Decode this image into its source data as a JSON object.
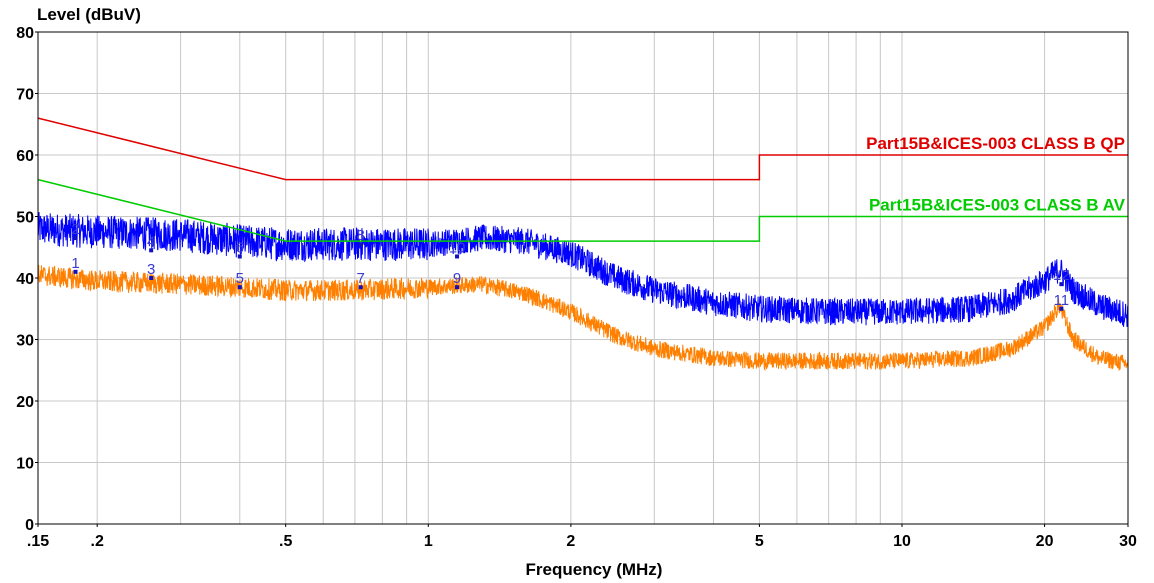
{
  "chart_data": {
    "type": "line",
    "ylabel": "Level (dBuV)",
    "xlabel": "Frequency (MHz)",
    "x_scale": "log",
    "xlim": [
      0.15,
      30
    ],
    "ylim": [
      0,
      80
    ],
    "grid": true,
    "x_ticks": [
      {
        "value": 0.15,
        "label": ".15"
      },
      {
        "value": 0.2,
        "label": ".2"
      },
      {
        "value": 0.5,
        "label": ".5"
      },
      {
        "value": 1,
        "label": "1"
      },
      {
        "value": 2,
        "label": "2"
      },
      {
        "value": 5,
        "label": "5"
      },
      {
        "value": 10,
        "label": "10"
      },
      {
        "value": 20,
        "label": "20"
      },
      {
        "value": 30,
        "label": "30"
      }
    ],
    "y_ticks": [
      0,
      10,
      20,
      30,
      40,
      50,
      60,
      70,
      80
    ],
    "limit_lines": [
      {
        "name": "Part15B&ICES-003 CLASS B QP",
        "color": "#e00000",
        "x": [
          0.15,
          0.5,
          0.5,
          5,
          5,
          30
        ],
        "y": [
          66,
          56,
          56,
          56,
          60,
          60
        ]
      },
      {
        "name": "Part15B&ICES-003 CLASS B AV",
        "color": "#00cc00",
        "x": [
          0.15,
          0.5,
          0.5,
          5,
          5,
          30
        ],
        "y": [
          56,
          46,
          46,
          46,
          50,
          50
        ]
      }
    ],
    "series": [
      {
        "color": "#0000ff",
        "envelope": {
          "x": [
            0.15,
            0.2,
            0.3,
            0.4,
            0.5,
            0.7,
            1,
            1.3,
            1.6,
            2,
            2.5,
            3,
            4,
            5,
            7,
            10,
            14,
            17,
            20,
            21.5,
            23,
            26,
            30
          ],
          "y": [
            48,
            47.5,
            47,
            46,
            45.5,
            45.5,
            45.5,
            46.5,
            46,
            44,
            40,
            38,
            36,
            35,
            34.5,
            34.5,
            35,
            36.5,
            39.5,
            41.5,
            38,
            35.5,
            34
          ]
        },
        "noise": 2.2
      },
      {
        "color": "#ff8000",
        "envelope": {
          "x": [
            0.15,
            0.2,
            0.3,
            0.4,
            0.5,
            0.7,
            1,
            1.3,
            1.6,
            2,
            2.5,
            3,
            4,
            5,
            7,
            10,
            14,
            17,
            20,
            21.5,
            23,
            26,
            30
          ],
          "y": [
            40.5,
            39.5,
            39,
            38.5,
            38,
            38,
            38.5,
            39,
            37.5,
            34.5,
            30.5,
            28.5,
            27,
            26.5,
            26.5,
            26.5,
            27,
            28.5,
            32,
            35.5,
            30,
            27,
            26
          ]
        },
        "noise": 1.4
      }
    ],
    "markers": [
      {
        "label": "1",
        "x": 0.18,
        "y": 41
      },
      {
        "label": "2",
        "x": 0.18,
        "y": 46.5
      },
      {
        "label": "3",
        "x": 0.26,
        "y": 40
      },
      {
        "label": "4",
        "x": 0.26,
        "y": 44.5
      },
      {
        "label": "5",
        "x": 0.4,
        "y": 38.5
      },
      {
        "label": "6",
        "x": 0.4,
        "y": 43.5
      },
      {
        "label": "7",
        "x": 0.72,
        "y": 38.5
      },
      {
        "label": "8",
        "x": 0.72,
        "y": 45.5
      },
      {
        "label": "9",
        "x": 1.15,
        "y": 38.5
      },
      {
        "label": "10",
        "x": 1.15,
        "y": 43.5
      },
      {
        "label": "11",
        "x": 21.7,
        "y": 35
      },
      {
        "label": "12",
        "x": 21.7,
        "y": 39
      }
    ]
  }
}
